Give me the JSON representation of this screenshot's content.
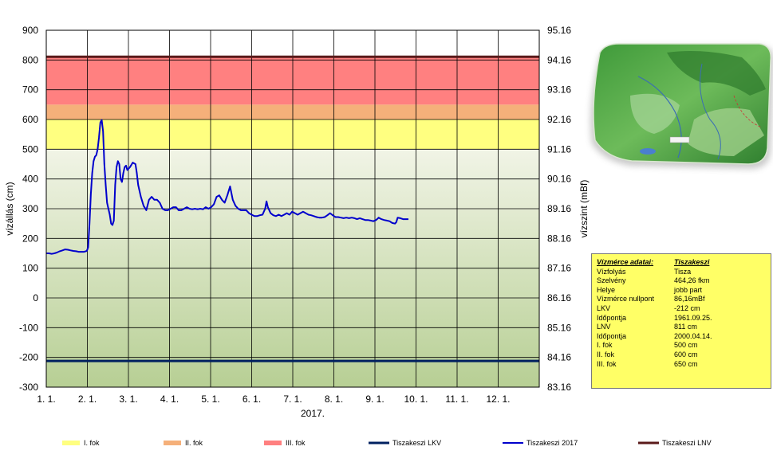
{
  "chart_data": {
    "type": "line",
    "xlabel": "2017.",
    "ylabel_left": "vízállás (cm)",
    "ylabel_right": "vízszint (mBf)",
    "x_ticks": [
      "1. 1.",
      "2. 1.",
      "3. 1.",
      "4. 1.",
      "5. 1.",
      "6. 1.",
      "7. 1.",
      "8. 1.",
      "9. 1.",
      "10. 1.",
      "11. 1.",
      "12. 1."
    ],
    "y_left_ticks": [
      "900",
      "800",
      "700",
      "600",
      "500",
      "400",
      "300",
      "200",
      "100",
      "0",
      "-100",
      "-200",
      "-300"
    ],
    "y_right_ticks": [
      "95.16",
      "94.16",
      "93.16",
      "92.16",
      "91.16",
      "90.16",
      "89.16",
      "88.16",
      "87.16",
      "86.16",
      "85.16",
      "84.16",
      "83.16"
    ],
    "ylim": [
      -300,
      900
    ],
    "grid": true,
    "bands": [
      {
        "name": "I. fok",
        "from": 500,
        "to": 600,
        "color": "#ffff80"
      },
      {
        "name": "II. fok",
        "from": 600,
        "to": 650,
        "color": "#f5b07a"
      },
      {
        "name": "III. fok",
        "from": 650,
        "to": 811,
        "color": "#ff8080"
      }
    ],
    "reference_lines": [
      {
        "name": "Tiszakeszi LKV",
        "value": -212,
        "color": "#002060"
      },
      {
        "name": "Tiszakeszi LNV",
        "value": 811,
        "color": "#5a1a1a"
      }
    ],
    "series": [
      {
        "name": "Tiszakeszi 2017",
        "color": "#0000cc",
        "x_unit": "days since 1 Jan 2017",
        "points": [
          [
            0,
            150
          ],
          [
            2,
            150
          ],
          [
            4,
            148
          ],
          [
            6,
            150
          ],
          [
            8,
            153
          ],
          [
            10,
            157
          ],
          [
            12,
            160
          ],
          [
            14,
            163
          ],
          [
            16,
            162
          ],
          [
            18,
            160
          ],
          [
            20,
            158
          ],
          [
            22,
            157
          ],
          [
            24,
            155
          ],
          [
            26,
            155
          ],
          [
            28,
            155
          ],
          [
            30,
            158
          ],
          [
            31,
            170
          ],
          [
            32,
            250
          ],
          [
            33,
            350
          ],
          [
            34,
            420
          ],
          [
            35,
            460
          ],
          [
            36,
            475
          ],
          [
            37,
            480
          ],
          [
            38,
            500
          ],
          [
            39,
            540
          ],
          [
            40,
            590
          ],
          [
            41,
            598
          ],
          [
            42,
            560
          ],
          [
            43,
            450
          ],
          [
            44,
            380
          ],
          [
            45,
            320
          ],
          [
            46,
            300
          ],
          [
            47,
            280
          ],
          [
            48,
            250
          ],
          [
            49,
            245
          ],
          [
            50,
            260
          ],
          [
            51,
            380
          ],
          [
            52,
            440
          ],
          [
            53,
            460
          ],
          [
            54,
            450
          ],
          [
            55,
            400
          ],
          [
            56,
            390
          ],
          [
            57,
            420
          ],
          [
            58,
            440
          ],
          [
            59,
            445
          ],
          [
            60,
            430
          ],
          [
            62,
            440
          ],
          [
            64,
            455
          ],
          [
            66,
            450
          ],
          [
            67,
            420
          ],
          [
            68,
            380
          ],
          [
            70,
            340
          ],
          [
            72,
            310
          ],
          [
            74,
            295
          ],
          [
            76,
            330
          ],
          [
            78,
            340
          ],
          [
            80,
            330
          ],
          [
            82,
            330
          ],
          [
            84,
            320
          ],
          [
            86,
            300
          ],
          [
            88,
            295
          ],
          [
            90,
            295
          ],
          [
            92,
            300
          ],
          [
            94,
            305
          ],
          [
            96,
            305
          ],
          [
            98,
            295
          ],
          [
            100,
            295
          ],
          [
            102,
            300
          ],
          [
            104,
            305
          ],
          [
            106,
            300
          ],
          [
            108,
            298
          ],
          [
            110,
            300
          ],
          [
            112,
            298
          ],
          [
            114,
            300
          ],
          [
            116,
            298
          ],
          [
            118,
            305
          ],
          [
            120,
            300
          ],
          [
            122,
            305
          ],
          [
            124,
            315
          ],
          [
            126,
            340
          ],
          [
            128,
            345
          ],
          [
            130,
            330
          ],
          [
            132,
            320
          ],
          [
            134,
            345
          ],
          [
            136,
            375
          ],
          [
            138,
            330
          ],
          [
            140,
            310
          ],
          [
            142,
            300
          ],
          [
            144,
            295
          ],
          [
            146,
            295
          ],
          [
            148,
            295
          ],
          [
            150,
            285
          ],
          [
            152,
            280
          ],
          [
            154,
            275
          ],
          [
            156,
            275
          ],
          [
            158,
            278
          ],
          [
            160,
            280
          ],
          [
            162,
            300
          ],
          [
            163,
            325
          ],
          [
            164,
            305
          ],
          [
            166,
            285
          ],
          [
            168,
            278
          ],
          [
            170,
            275
          ],
          [
            172,
            280
          ],
          [
            174,
            275
          ],
          [
            176,
            280
          ],
          [
            178,
            285
          ],
          [
            180,
            280
          ],
          [
            182,
            290
          ],
          [
            184,
            285
          ],
          [
            186,
            280
          ],
          [
            188,
            285
          ],
          [
            190,
            290
          ],
          [
            192,
            285
          ],
          [
            194,
            280
          ],
          [
            196,
            278
          ],
          [
            198,
            275
          ],
          [
            200,
            272
          ],
          [
            202,
            270
          ],
          [
            204,
            270
          ],
          [
            206,
            272
          ],
          [
            208,
            278
          ],
          [
            210,
            285
          ],
          [
            212,
            278
          ],
          [
            214,
            272
          ],
          [
            216,
            272
          ],
          [
            218,
            270
          ],
          [
            220,
            268
          ],
          [
            222,
            270
          ],
          [
            224,
            268
          ],
          [
            226,
            270
          ],
          [
            228,
            268
          ],
          [
            230,
            265
          ],
          [
            232,
            268
          ],
          [
            234,
            265
          ],
          [
            236,
            262
          ],
          [
            238,
            262
          ],
          [
            240,
            260
          ],
          [
            242,
            258
          ],
          [
            244,
            262
          ],
          [
            246,
            270
          ],
          [
            248,
            265
          ],
          [
            250,
            262
          ],
          [
            252,
            260
          ],
          [
            254,
            258
          ],
          [
            256,
            252
          ],
          [
            258,
            250
          ],
          [
            259,
            255
          ],
          [
            260,
            270
          ],
          [
            262,
            268
          ],
          [
            264,
            265
          ],
          [
            266,
            265
          ],
          [
            268,
            265
          ]
        ]
      }
    ],
    "legend_placement": "bottom"
  },
  "legend": [
    {
      "label": "I. fok",
      "color": "#ffff80",
      "kind": "band"
    },
    {
      "label": "II. fok",
      "color": "#f5b07a",
      "kind": "band"
    },
    {
      "label": "III. fok",
      "color": "#ff8080",
      "kind": "band"
    },
    {
      "label": "Tiszakeszi LKV",
      "color": "#002060",
      "kind": "line"
    },
    {
      "label": "Tiszakeszi 2017",
      "color": "#0000cc",
      "kind": "line"
    },
    {
      "label": "Tiszakeszi LNV",
      "color": "#5a1a1a",
      "kind": "line"
    }
  ],
  "info_box": {
    "header_key": "Vízmérce adatai:",
    "header_value": "Tiszakeszi",
    "rows": [
      {
        "k": "Vízfolyás",
        "v": "Tisza"
      },
      {
        "k": "Szelvény",
        "v": "464,26 fkm"
      },
      {
        "k": "Helye",
        "v": "jobb part"
      },
      {
        "k": "Vízmérce nullpont",
        "v": "86,16mBf"
      },
      {
        "k": "LKV",
        "v": "-212 cm"
      },
      {
        "k": "Időpontja",
        "v": "1961.09.25."
      },
      {
        "k": "LNV",
        "v": "811 cm"
      },
      {
        "k": "Időpontja",
        "v": "2000.04.14."
      },
      {
        "k": "I. fok",
        "v": "500 cm"
      },
      {
        "k": "II. fok",
        "v": "600 cm"
      },
      {
        "k": "III. fok",
        "v": "650 cm"
      }
    ]
  },
  "map_image": {
    "icon": "relief-map-thumbnail"
  }
}
